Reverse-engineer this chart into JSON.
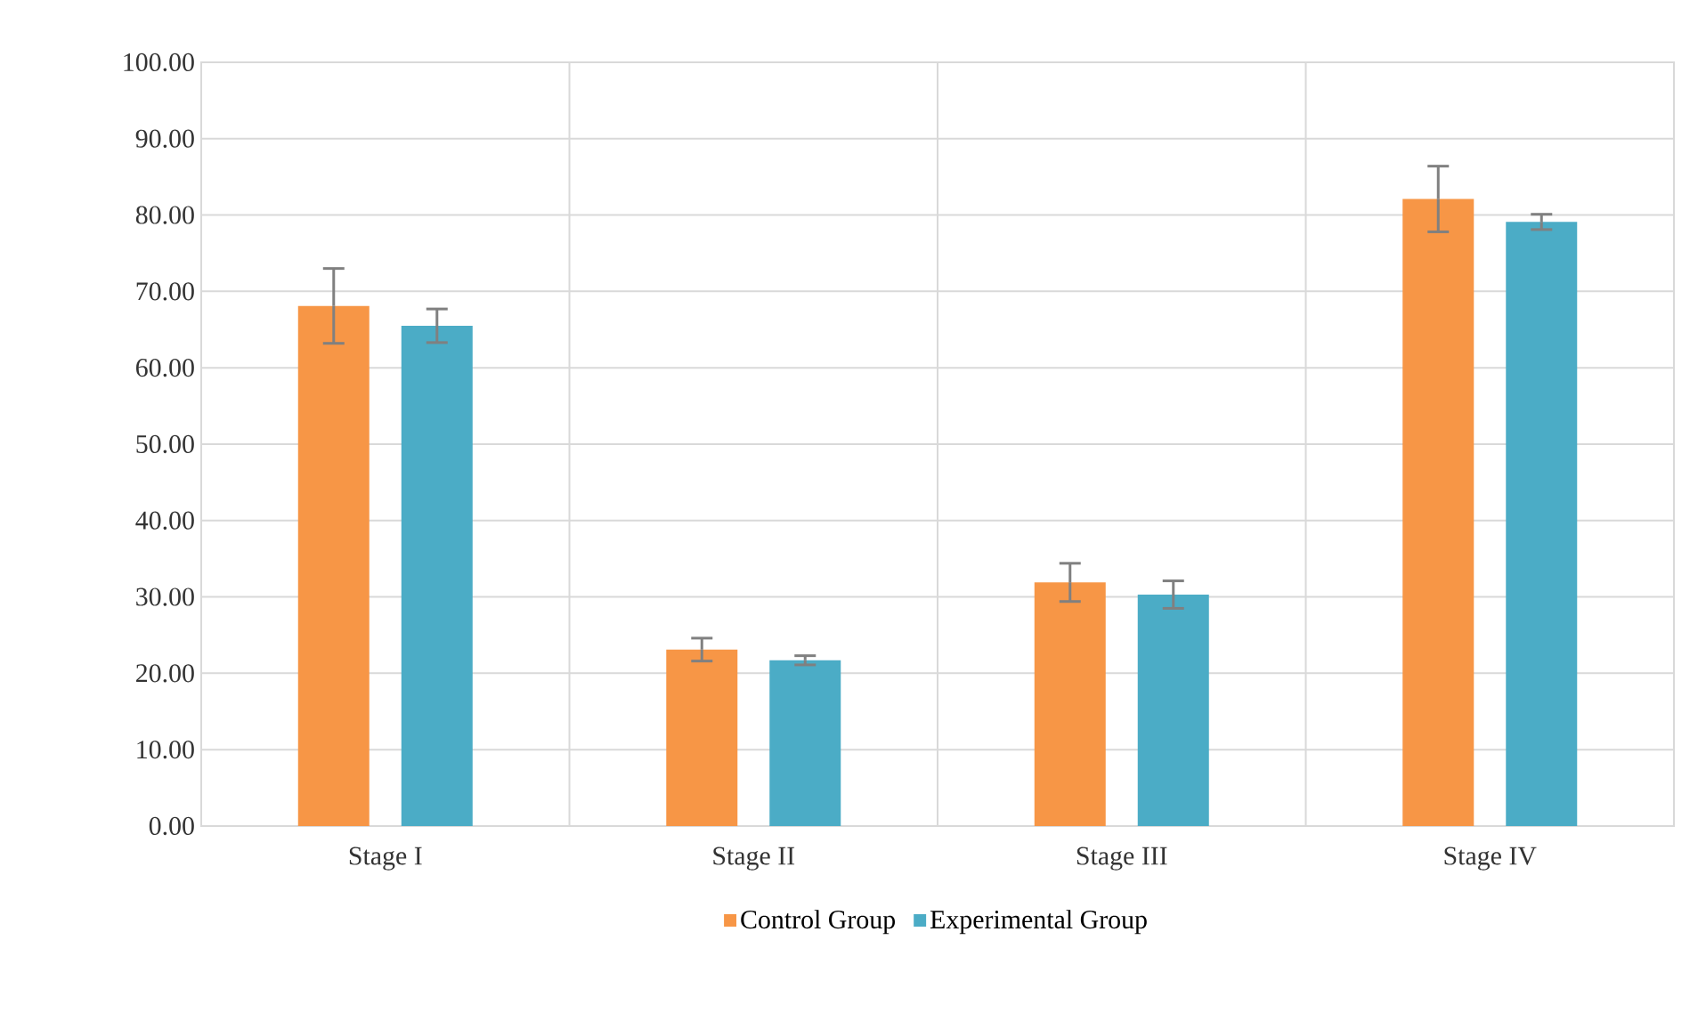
{
  "chart_data": {
    "type": "bar",
    "categories": [
      "Stage I",
      "Stage II",
      "Stage III",
      "Stage IV"
    ],
    "series": [
      {
        "name": "Control Group",
        "color": "#f79646",
        "values": [
          68.1,
          23.1,
          31.9,
          82.1
        ],
        "errors": [
          4.9,
          1.5,
          2.5,
          4.3
        ]
      },
      {
        "name": "Experimental Group",
        "color": "#4bacc6",
        "values": [
          65.5,
          21.7,
          30.3,
          79.1
        ],
        "errors": [
          2.2,
          0.6,
          1.8,
          1.0
        ]
      }
    ],
    "ylim": [
      0,
      100
    ],
    "yticks": [
      {
        "value": 0,
        "label": "0.00"
      },
      {
        "value": 10,
        "label": "10.00"
      },
      {
        "value": 20,
        "label": "20.00"
      },
      {
        "value": 30,
        "label": "30.00"
      },
      {
        "value": 40,
        "label": "40.00"
      },
      {
        "value": 50,
        "label": "50.00"
      },
      {
        "value": 60,
        "label": "60.00"
      },
      {
        "value": 70,
        "label": "70.00"
      },
      {
        "value": 80,
        "label": "80.00"
      },
      {
        "value": 90,
        "label": "90.00"
      },
      {
        "value": 100,
        "label": "100.00"
      }
    ],
    "grid": true,
    "legend": "bottom"
  }
}
